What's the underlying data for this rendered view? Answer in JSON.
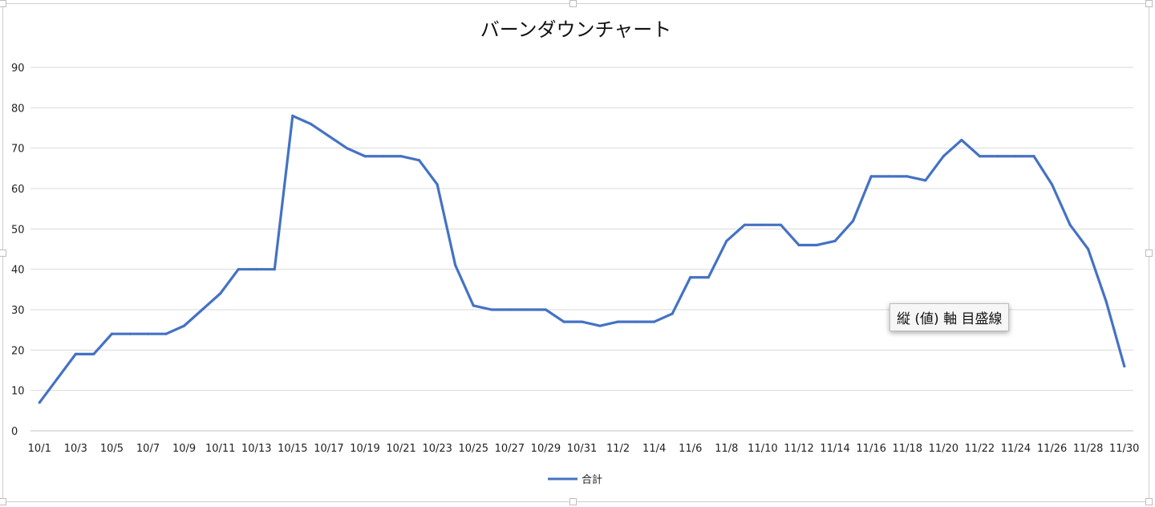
{
  "colors": {
    "series": "#4472c4",
    "gridline": "#d9d9d9",
    "axis": "#bfbfbf"
  },
  "tooltip": {
    "text": "縦 (値) 軸 目盛線"
  },
  "chart_data": {
    "type": "line",
    "title": "バーンダウンチャート",
    "xlabel": "",
    "ylabel": "",
    "ylim": [
      0,
      90
    ],
    "yticks": [
      0,
      10,
      20,
      30,
      40,
      50,
      60,
      70,
      80,
      90
    ],
    "grid": true,
    "legend_position": "bottom",
    "x": [
      "10/1",
      "10/2",
      "10/3",
      "10/4",
      "10/5",
      "10/6",
      "10/7",
      "10/8",
      "10/9",
      "10/10",
      "10/11",
      "10/12",
      "10/13",
      "10/14",
      "10/15",
      "10/16",
      "10/17",
      "10/18",
      "10/19",
      "10/20",
      "10/21",
      "10/22",
      "10/23",
      "10/24",
      "10/25",
      "10/26",
      "10/27",
      "10/28",
      "10/29",
      "10/30",
      "10/31",
      "11/1",
      "11/2",
      "11/3",
      "11/4",
      "11/5",
      "11/6",
      "11/7",
      "11/8",
      "11/9",
      "11/10",
      "11/11",
      "11/12",
      "11/13",
      "11/14",
      "11/15",
      "11/16",
      "11/17",
      "11/18",
      "11/19",
      "11/20",
      "11/21",
      "11/22",
      "11/23",
      "11/24",
      "11/25",
      "11/26",
      "11/27",
      "11/28",
      "11/29",
      "11/30"
    ],
    "x_tick_labels": [
      "10/1",
      "10/3",
      "10/5",
      "10/7",
      "10/9",
      "10/11",
      "10/13",
      "10/15",
      "10/17",
      "10/19",
      "10/21",
      "10/23",
      "10/25",
      "10/27",
      "10/29",
      "10/31",
      "11/2",
      "11/4",
      "11/6",
      "11/8",
      "11/10",
      "11/12",
      "11/14",
      "11/16",
      "11/18",
      "11/20",
      "11/22",
      "11/24",
      "11/26",
      "11/28",
      "11/30"
    ],
    "series": [
      {
        "name": "合計",
        "color": "#4472c4",
        "values": [
          7,
          13,
          19,
          19,
          24,
          24,
          24,
          24,
          26,
          30,
          34,
          40,
          40,
          40,
          78,
          76,
          73,
          70,
          68,
          68,
          68,
          67,
          61,
          41,
          31,
          30,
          30,
          30,
          30,
          27,
          27,
          26,
          27,
          27,
          27,
          29,
          38,
          38,
          47,
          51,
          51,
          51,
          46,
          46,
          47,
          52,
          63,
          63,
          63,
          62,
          68,
          72,
          68,
          68,
          68,
          68,
          61,
          51,
          45,
          32,
          16
        ]
      }
    ]
  }
}
